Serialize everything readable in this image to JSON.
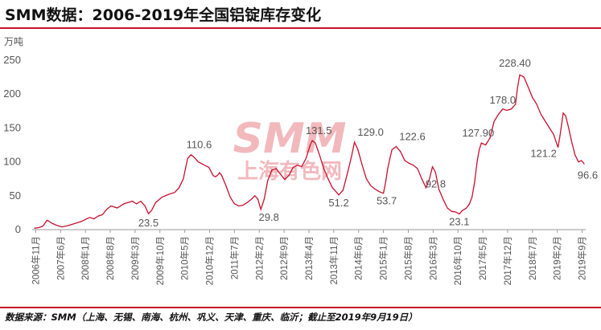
{
  "title": "SMM数据：2006-2019年全国铝锭库存变化",
  "source": "数据来源：SMM（上海、无锡、南海、杭州、巩义、天津、重庆、临沂；截止至2019年9月19日）",
  "watermark": {
    "main": "SMM",
    "sub": "上海有色网"
  },
  "colors": {
    "line": "#c8102e",
    "rule": "#c8102e",
    "watermark": "#f2b9bd"
  },
  "chart_data": {
    "type": "line",
    "unit": "万吨",
    "ylim": [
      0,
      250
    ],
    "yticks": [
      0,
      50,
      100,
      150,
      200,
      250
    ],
    "grid": false,
    "xticks": [
      "2006年11月",
      "2007年6月",
      "2008年1月",
      "2008年8月",
      "2009年3月",
      "2009年10月",
      "2010年5月",
      "2010年12月",
      "2011年7月",
      "2012年2月",
      "2012年9月",
      "2013年4月",
      "2013年11月",
      "2014年6月",
      "2015年1月",
      "2015年8月",
      "2016年3月",
      "2016年10月",
      "2017年5月",
      "2017年12月",
      "2018年7月",
      "2019年2月",
      "2019年9月"
    ],
    "series": [
      {
        "values": [
          [
            2006.8,
            2
          ],
          [
            2006.9,
            3
          ],
          [
            2007.0,
            5
          ],
          [
            2007.1,
            14
          ],
          [
            2007.2,
            10
          ],
          [
            2007.3,
            7
          ],
          [
            2007.45,
            4
          ],
          [
            2007.6,
            6
          ],
          [
            2007.75,
            9
          ],
          [
            2007.9,
            12
          ],
          [
            2008.0,
            15
          ],
          [
            2008.1,
            18
          ],
          [
            2008.2,
            16
          ],
          [
            2008.3,
            20
          ],
          [
            2008.4,
            22
          ],
          [
            2008.5,
            30
          ],
          [
            2008.6,
            35
          ],
          [
            2008.75,
            32
          ],
          [
            2008.9,
            38
          ],
          [
            2009.0,
            40
          ],
          [
            2009.1,
            42
          ],
          [
            2009.2,
            38
          ],
          [
            2009.3,
            42
          ],
          [
            2009.4,
            35
          ],
          [
            2009.48,
            23.5
          ],
          [
            2009.55,
            28
          ],
          [
            2009.65,
            40
          ],
          [
            2009.8,
            48
          ],
          [
            2009.95,
            52
          ],
          [
            2010.1,
            55
          ],
          [
            2010.2,
            62
          ],
          [
            2010.3,
            75
          ],
          [
            2010.35,
            90
          ],
          [
            2010.4,
            105
          ],
          [
            2010.48,
            110.6
          ],
          [
            2010.55,
            107
          ],
          [
            2010.65,
            100
          ],
          [
            2010.8,
            95
          ],
          [
            2010.9,
            92
          ],
          [
            2011.0,
            80
          ],
          [
            2011.05,
            78
          ],
          [
            2011.1,
            80
          ],
          [
            2011.15,
            84
          ],
          [
            2011.2,
            80
          ],
          [
            2011.3,
            65
          ],
          [
            2011.4,
            48
          ],
          [
            2011.5,
            38
          ],
          [
            2011.6,
            35
          ],
          [
            2011.7,
            36
          ],
          [
            2011.8,
            40
          ],
          [
            2011.9,
            45
          ],
          [
            2011.98,
            50
          ],
          [
            2012.05,
            45
          ],
          [
            2012.12,
            29.8
          ],
          [
            2012.2,
            45
          ],
          [
            2012.28,
            72
          ],
          [
            2012.38,
            88
          ],
          [
            2012.48,
            90
          ],
          [
            2012.58,
            82
          ],
          [
            2012.68,
            74
          ],
          [
            2012.78,
            80
          ],
          [
            2012.88,
            92
          ],
          [
            2012.98,
            95
          ],
          [
            2013.08,
            93
          ],
          [
            2013.18,
            105
          ],
          [
            2013.28,
            125
          ],
          [
            2013.33,
            131.5
          ],
          [
            2013.4,
            128
          ],
          [
            2013.5,
            110
          ],
          [
            2013.6,
            90
          ],
          [
            2013.7,
            75
          ],
          [
            2013.8,
            62
          ],
          [
            2013.9,
            55
          ],
          [
            2013.95,
            51.2
          ],
          [
            2014.05,
            58
          ],
          [
            2014.15,
            82
          ],
          [
            2014.25,
            108
          ],
          [
            2014.32,
            129
          ],
          [
            2014.4,
            118
          ],
          [
            2014.5,
            95
          ],
          [
            2014.6,
            75
          ],
          [
            2014.7,
            65
          ],
          [
            2014.8,
            60
          ],
          [
            2014.9,
            56
          ],
          [
            2015.0,
            53.7
          ],
          [
            2015.05,
            70
          ],
          [
            2015.1,
            90
          ],
          [
            2015.15,
            105
          ],
          [
            2015.2,
            118
          ],
          [
            2015.3,
            122.6
          ],
          [
            2015.4,
            115
          ],
          [
            2015.5,
            102
          ],
          [
            2015.6,
            98
          ],
          [
            2015.7,
            95
          ],
          [
            2015.8,
            90
          ],
          [
            2015.9,
            75
          ],
          [
            2016.0,
            62
          ],
          [
            2016.08,
            75
          ],
          [
            2016.15,
            92.8
          ],
          [
            2016.22,
            85
          ],
          [
            2016.3,
            60
          ],
          [
            2016.4,
            45
          ],
          [
            2016.5,
            32
          ],
          [
            2016.6,
            27
          ],
          [
            2016.7,
            26
          ],
          [
            2016.78,
            23.1
          ],
          [
            2016.85,
            28
          ],
          [
            2016.95,
            32
          ],
          [
            2017.02,
            38
          ],
          [
            2017.08,
            48
          ],
          [
            2017.14,
            70
          ],
          [
            2017.2,
            100
          ],
          [
            2017.25,
            118
          ],
          [
            2017.3,
            127.9
          ],
          [
            2017.4,
            125
          ],
          [
            2017.5,
            135
          ],
          [
            2017.6,
            160
          ],
          [
            2017.7,
            170
          ],
          [
            2017.8,
            178
          ],
          [
            2017.9,
            176
          ],
          [
            2018.0,
            178
          ],
          [
            2018.1,
            185
          ],
          [
            2018.15,
            210
          ],
          [
            2018.2,
            228.4
          ],
          [
            2018.3,
            225
          ],
          [
            2018.4,
            210
          ],
          [
            2018.5,
            195
          ],
          [
            2018.6,
            185
          ],
          [
            2018.7,
            170
          ],
          [
            2018.8,
            160
          ],
          [
            2018.9,
            150
          ],
          [
            2019.0,
            140
          ],
          [
            2019.05,
            130
          ],
          [
            2019.1,
            121.2
          ],
          [
            2019.15,
            140
          ],
          [
            2019.22,
            172
          ],
          [
            2019.28,
            168
          ],
          [
            2019.35,
            150
          ],
          [
            2019.42,
            130
          ],
          [
            2019.5,
            110
          ],
          [
            2019.58,
            100
          ],
          [
            2019.65,
            102
          ],
          [
            2019.72,
            96.6
          ]
        ]
      }
    ],
    "annotations": [
      {
        "x": 2009.48,
        "y": 23.5,
        "text": "23.5"
      },
      {
        "x": 2010.48,
        "y": 110.6,
        "text": "110.6"
      },
      {
        "x": 2012.12,
        "y": 29.8,
        "text": "29.8"
      },
      {
        "x": 2013.33,
        "y": 131.5,
        "text": "131.5"
      },
      {
        "x": 2013.95,
        "y": 51.2,
        "text": "51.2"
      },
      {
        "x": 2014.32,
        "y": 129,
        "text": "129.0"
      },
      {
        "x": 2015.0,
        "y": 53.7,
        "text": "53.7"
      },
      {
        "x": 2015.3,
        "y": 122.6,
        "text": "122.6"
      },
      {
        "x": 2016.15,
        "y": 92.8,
        "text": "92.8"
      },
      {
        "x": 2016.78,
        "y": 23.1,
        "text": "23.1"
      },
      {
        "x": 2017.3,
        "y": 127.9,
        "text": "127.90"
      },
      {
        "x": 2017.8,
        "y": 178,
        "text": "178.0"
      },
      {
        "x": 2018.2,
        "y": 228.4,
        "text": "228.40"
      },
      {
        "x": 2019.1,
        "y": 121.2,
        "text": "121.2"
      },
      {
        "x": 2019.72,
        "y": 96.6,
        "text": "96.6"
      }
    ]
  }
}
